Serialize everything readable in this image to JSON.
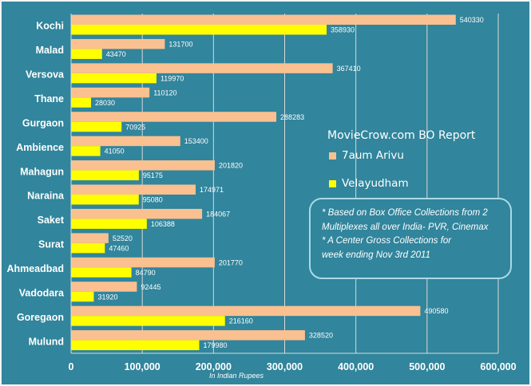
{
  "chart_data": {
    "type": "bar",
    "orientation": "horizontal",
    "title": "MovieCrow.com BO Report",
    "xlabel": "In Indian Rupees",
    "ylabel": "",
    "categories": [
      "Kochi",
      "Malad",
      "Versova",
      "Thane",
      "Gurgaon",
      "Ambience",
      "Mahagun",
      "Naraina",
      "Saket",
      "Surat",
      "Ahmeadbad",
      "Vadodara",
      "Goregaon",
      "Mulund"
    ],
    "series": [
      {
        "name": "7aum Arivu",
        "color": "#fac090",
        "values": [
          540330,
          131700,
          367410,
          110120,
          288283,
          153400,
          201820,
          174971,
          184067,
          52520,
          201770,
          92445,
          490580,
          328520
        ]
      },
      {
        "name": "Velayudham",
        "color": "#ffff00",
        "values": [
          358930,
          43470,
          119970,
          28030,
          70925,
          41050,
          95175,
          95080,
          106388,
          47460,
          84790,
          31920,
          216160,
          179980
        ]
      }
    ],
    "xlim": [
      0,
      600000
    ],
    "x_ticks": [
      0,
      100000,
      200000,
      300000,
      400000,
      500000,
      600000
    ],
    "x_tick_labels": [
      "0",
      "100,000",
      "200,000",
      "300,000",
      "400,000",
      "500,000",
      "600,000"
    ],
    "grid": true,
    "legend_position": "right",
    "data_labels": true
  },
  "note": {
    "lines": [
      "* Based on Box Office Collections from 2",
      "Multiplexes all over India- PVR, Cinemax",
      "* A Center Gross Collections for",
      "week ending Nov 3rd  2011"
    ]
  }
}
